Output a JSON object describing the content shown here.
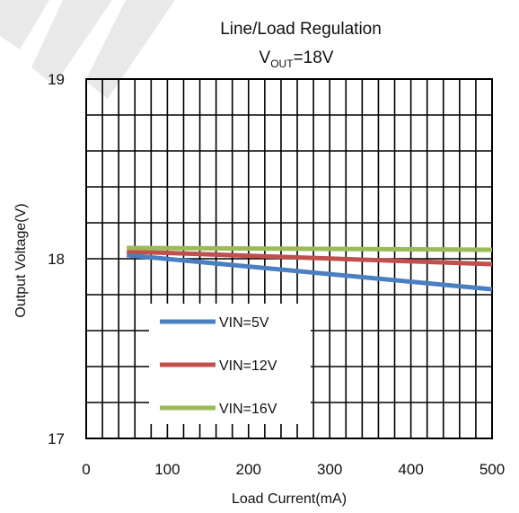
{
  "chart_data": {
    "type": "line",
    "title": "Line/Load Regulation",
    "subtitle_prefix": "V",
    "subtitle_subscript": "OUT",
    "subtitle_suffix": "=18V",
    "xlabel": "Load Current(mA)",
    "ylabel": "Output Voltage(V)",
    "xlim": [
      0,
      500
    ],
    "ylim": [
      17,
      19
    ],
    "xticks": [
      0,
      100,
      200,
      300,
      400,
      500
    ],
    "yticks": [
      17,
      18,
      19
    ],
    "grid": true,
    "legend_placement": "bottom-left",
    "series": [
      {
        "name": "VIN=5V",
        "color": "#4a7fc1",
        "x": [
          50,
          500
        ],
        "y": [
          18.02,
          17.83
        ]
      },
      {
        "name": "VIN=12V",
        "color": "#c0504d",
        "x": [
          50,
          500
        ],
        "y": [
          18.04,
          17.97
        ]
      },
      {
        "name": "VIN=16V",
        "color": "#9bbb59",
        "x": [
          50,
          500
        ],
        "y": [
          18.06,
          18.05
        ]
      }
    ]
  }
}
